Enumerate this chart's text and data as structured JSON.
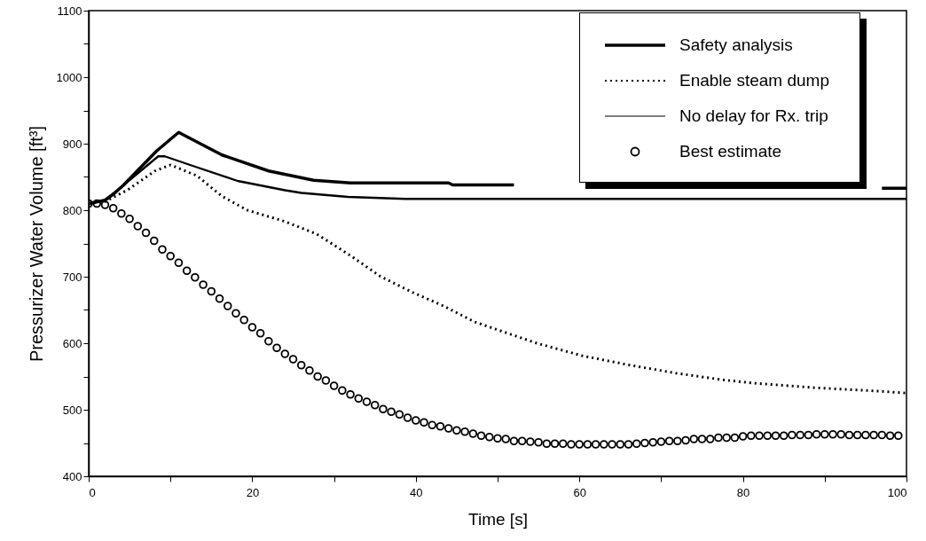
{
  "chart_data": {
    "type": "line",
    "xlabel": "Time [s]",
    "ylabel": "Pressurizer Water Volume [ft³]",
    "xlim": [
      0,
      100
    ],
    "xticks": [
      0,
      {
        "value": 10,
        "label": null
      },
      20,
      {
        "value": 30,
        "label": null
      },
      40,
      {
        "value": 50,
        "label": null
      },
      60,
      {
        "value": 70,
        "label": null
      },
      80,
      {
        "value": 90,
        "label": null
      },
      100
    ],
    "ylim": [
      400,
      1100
    ],
    "yticks": [
      400,
      {
        "value": 450,
        "label": null
      },
      500,
      {
        "value": 550,
        "label": null
      },
      600,
      {
        "value": 650,
        "label": null
      },
      700,
      {
        "value": 750,
        "label": null
      },
      800,
      {
        "value": 850,
        "label": null
      },
      900,
      {
        "value": 950,
        "label": null
      },
      1000,
      {
        "value": 1050,
        "label": null
      },
      1100
    ],
    "grid": false,
    "legend": "top right",
    "series": [
      {
        "name": "Safety analysis",
        "type": "line",
        "line_style": "solid",
        "color": "#000000",
        "x": [
          0,
          2,
          3.1,
          4.2,
          8.3,
          11,
          16.3,
          22,
          27.5,
          32,
          44,
          44.5,
          52,
          80,
          97,
          100
        ],
        "values": [
          810,
          815,
          825,
          837,
          889,
          917,
          883,
          859,
          845,
          841,
          841,
          838,
          838,
          null,
          833,
          833
        ]
      },
      {
        "name": "Enable steam dump",
        "type": "line",
        "line_style": "dotted",
        "color": "#000000",
        "x": [
          0,
          2,
          4.7,
          8.1,
          10,
          13.2,
          16.3,
          19.4,
          24,
          27.9,
          32.1,
          35.6,
          39.5,
          43.4,
          47.2,
          51,
          54.8,
          60.4,
          66.2,
          71.8,
          77.5,
          81.3,
          88.9,
          96.5,
          100
        ],
        "values": [
          810,
          813,
          830,
          859,
          868,
          852,
          821,
          800,
          783,
          764,
          731,
          701,
          677,
          656,
          632,
          616,
          600,
          581,
          567,
          555,
          545,
          540,
          533,
          528,
          525
        ]
      },
      {
        "name": "No delay for Rx. trip",
        "type": "line",
        "line_style": "solid",
        "color": "#000000",
        "x": [
          0,
          2,
          4,
          8.5,
          9.3,
          12.4,
          18.2,
          24,
          26,
          31.7,
          38.7,
          100
        ],
        "values": [
          810,
          815,
          835,
          881,
          881,
          868,
          844,
          830,
          826,
          820,
          817,
          817
        ]
      },
      {
        "name": "Best estimate",
        "type": "scatter",
        "marker": "circle",
        "color": "#000000",
        "x": [
          0,
          1,
          2,
          3,
          4,
          5,
          6,
          7,
          8,
          9,
          10,
          11,
          12,
          13,
          14,
          15,
          16,
          17,
          18,
          19,
          20,
          21,
          22,
          23,
          24,
          25,
          26,
          27,
          28,
          29,
          30,
          31,
          32,
          33,
          34,
          35,
          36,
          37,
          38,
          39,
          40,
          41,
          42,
          43,
          44,
          45,
          46,
          47,
          48,
          49,
          50,
          51,
          52,
          53,
          54,
          55,
          56,
          57,
          58,
          59,
          60,
          61,
          62,
          63,
          64,
          65,
          66,
          67,
          68,
          69,
          70,
          71,
          72,
          73,
          74,
          75,
          76,
          77,
          78,
          79,
          80,
          81,
          82,
          83,
          84,
          85,
          86,
          87,
          88,
          89,
          90,
          91,
          92,
          93,
          94,
          95,
          96,
          97,
          98,
          99
        ],
        "values": [
          810,
          810,
          808,
          803,
          795,
          787,
          776,
          766,
          754,
          741,
          731,
          721,
          709,
          699,
          688,
          678,
          667,
          656,
          645,
          635,
          624,
          615,
          603,
          593,
          584,
          576,
          567,
          559,
          550,
          544,
          536,
          529,
          523,
          517,
          512,
          507,
          501,
          497,
          493,
          488,
          484,
          481,
          477,
          475,
          472,
          469,
          467,
          464,
          461,
          459,
          457,
          456,
          453,
          453,
          452,
          451,
          449,
          449,
          449,
          448,
          448,
          448,
          448,
          448,
          448,
          448,
          448,
          449,
          450,
          451,
          452,
          453,
          453,
          454,
          456,
          456,
          456,
          458,
          458,
          458,
          460,
          461,
          461,
          461,
          461,
          461,
          462,
          462,
          462,
          463,
          463,
          463,
          463,
          462,
          462,
          462,
          462,
          462,
          461,
          461
        ]
      }
    ]
  }
}
